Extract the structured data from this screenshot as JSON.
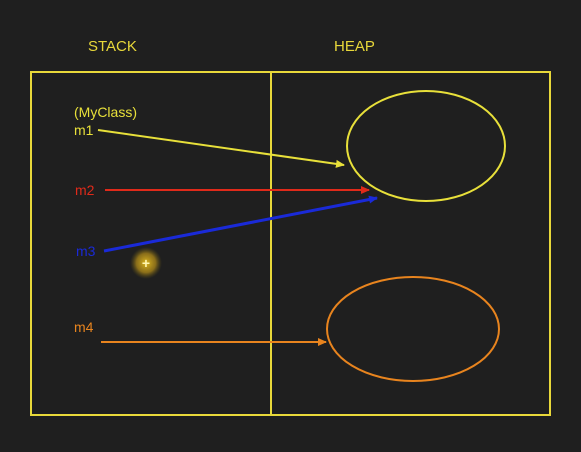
{
  "headers": {
    "stack": "STACK",
    "heap": "HEAP"
  },
  "type_label": "(MyClass)",
  "variables": [
    {
      "name": "m1",
      "color": "#e8e03a"
    },
    {
      "name": "m2",
      "color": "#e02a1a"
    },
    {
      "name": "m3",
      "color": "#1a2ad8"
    },
    {
      "name": "m4",
      "color": "#e8841e"
    }
  ],
  "objects": [
    {
      "id": "object-1",
      "color": "#e8e03a"
    },
    {
      "id": "object-2",
      "color": "#e8841e"
    }
  ],
  "colors": {
    "frame": "#e8d83a",
    "header": "#e8d83a",
    "cursor": "#e8c020",
    "background": "#1f1f1f"
  }
}
